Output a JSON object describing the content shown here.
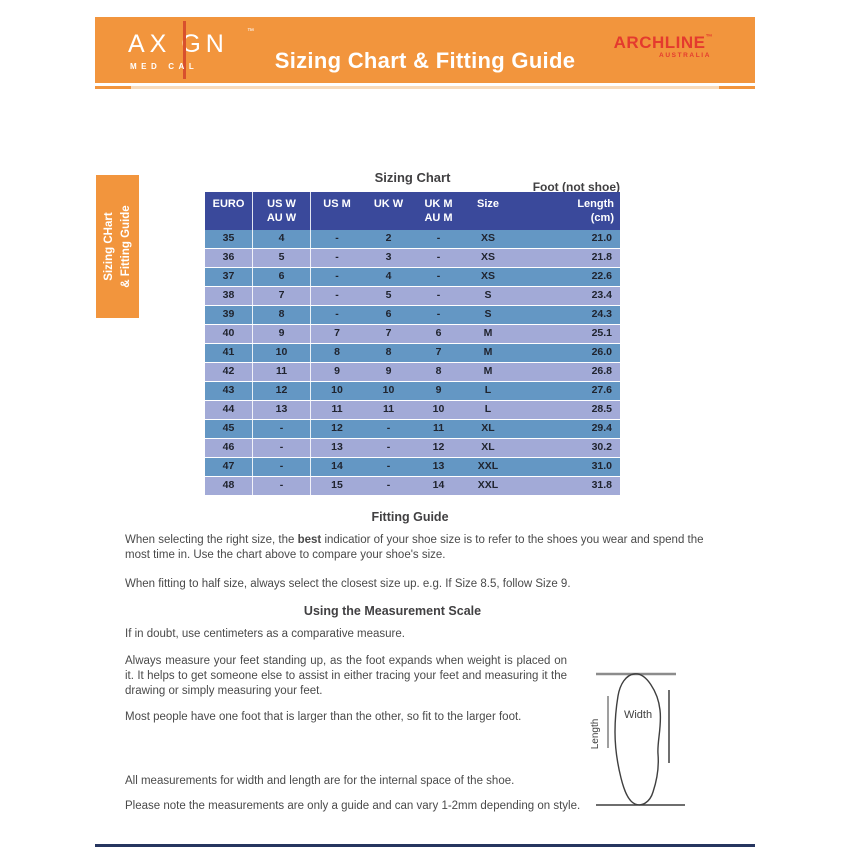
{
  "banner": {
    "title": "Sizing Chart & Fitting Guide",
    "axign": {
      "word_pre": "AX",
      "word_post": "GN",
      "tm": "™",
      "sub_pre": "MED",
      "sub_post": "CAL"
    },
    "archline": {
      "word": "ARCHLINE",
      "tm": "™",
      "sub": "AUSTRALIA"
    }
  },
  "side_tab": {
    "line1": "Sizing CHart",
    "line2": "& Fitting Guide"
  },
  "sizing_chart": {
    "title": "Sizing Chart",
    "foot_label": "Foot (not shoe)"
  },
  "chart_data": {
    "type": "table",
    "title": "Sizing Chart",
    "columns": [
      "EURO",
      "US W\nAU W",
      "US M",
      "UK W",
      "UK M\nAU M",
      "Size",
      "Length\n(cm)"
    ],
    "rows": [
      [
        "35",
        "4",
        "-",
        "2",
        "-",
        "XS",
        "21.0"
      ],
      [
        "36",
        "5",
        "-",
        "3",
        "-",
        "XS",
        "21.8"
      ],
      [
        "37",
        "6",
        "-",
        "4",
        "-",
        "XS",
        "22.6"
      ],
      [
        "38",
        "7",
        "-",
        "5",
        "-",
        "S",
        "23.4"
      ],
      [
        "39",
        "8",
        "-",
        "6",
        "-",
        "S",
        "24.3"
      ],
      [
        "40",
        "9",
        "7",
        "7",
        "6",
        "M",
        "25.1"
      ],
      [
        "41",
        "10",
        "8",
        "8",
        "7",
        "M",
        "26.0"
      ],
      [
        "42",
        "11",
        "9",
        "9",
        "8",
        "M",
        "26.8"
      ],
      [
        "43",
        "12",
        "10",
        "10",
        "9",
        "L",
        "27.6"
      ],
      [
        "44",
        "13",
        "11",
        "11",
        "10",
        "L",
        "28.5"
      ],
      [
        "45",
        "-",
        "12",
        "-",
        "11",
        "XL",
        "29.4"
      ],
      [
        "46",
        "-",
        "13",
        "-",
        "12",
        "XL",
        "30.2"
      ],
      [
        "47",
        "-",
        "14",
        "-",
        "13",
        "XXL",
        "31.0"
      ],
      [
        "48",
        "-",
        "15",
        "-",
        "14",
        "XXL",
        "31.8"
      ]
    ]
  },
  "fitting_guide": {
    "heading": "Fitting Guide",
    "p1_pre": "When selecting the right size, the ",
    "p1_bold": "best",
    "p1_post": " indicatior of your shoe size is to refer to the shoes you wear and spend the most time in. Use the chart above to compare your shoe's size.",
    "p2": "When fitting to half size, always select the closest size up. e.g. If Size 8.5, follow Size 9."
  },
  "measurement_scale": {
    "heading": "Using the Measurement Scale",
    "p3": "If in doubt, use centimeters as a comparative measure.",
    "p4": "Always measure your feet standing up, as the foot expands when weight is placed on it. It helps to get someone else to assist in either tracing your feet and measuring it the drawing or simply measuring your feet.",
    "p5": "Most people have one foot that is larger than the other, so fit to the larger foot.",
    "p6": "All measurements for width and length are for the internal space of the shoe.",
    "p7": "Please note the measurements are only a guide and can vary 1-2mm depending on style."
  },
  "diagram": {
    "width_label": "Width",
    "length_label": "Length"
  },
  "colors": {
    "banner_orange": "#F2953D",
    "accent_red": "#E43A2E",
    "logo_line_red": "#D8502D",
    "table_header_blue": "#3A499B",
    "row_dark_blue": "#6497C4",
    "row_light_periwinkle": "#A2AAD7",
    "bottom_rule_navy": "#26355F"
  }
}
